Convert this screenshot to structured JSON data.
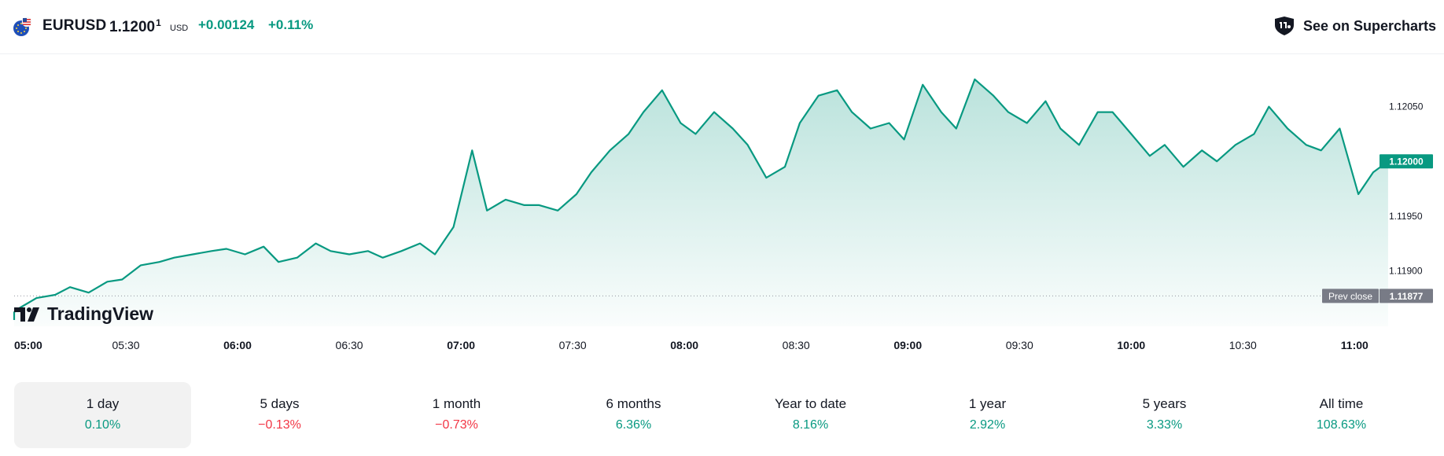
{
  "header": {
    "symbol": "EURUSD",
    "price_main": "1.1200",
    "price_super": "1",
    "currency": "USD",
    "change": "+0.00124",
    "change_pct": "+0.11%",
    "supercharts_label": "See on Supercharts",
    "flag_icon": "eu-us-flag-icon",
    "supercharts_icon": "supercharts-icon"
  },
  "logo_text": "TradingView",
  "colors": {
    "line": "#089981",
    "positive": "#089981",
    "negative": "#f23645",
    "prev_close_tag": "#787b86"
  },
  "chart_data": {
    "type": "area",
    "series": [
      {
        "x": [
          "04:52",
          "04:57",
          "05:01",
          "05:06",
          "05:11",
          "05:15",
          "05:20",
          "05:25",
          "05:29",
          "05:34",
          "05:39",
          "05:43",
          "05:48",
          "05:53",
          "05:57",
          "06:02",
          "06:07",
          "06:11",
          "06:16",
          "06:21",
          "06:25",
          "06:30",
          "06:35",
          "06:39",
          "06:44",
          "06:49",
          "06:53",
          "06:58",
          "07:03",
          "07:07",
          "07:12",
          "07:17",
          "07:21",
          "07:26",
          "07:31",
          "07:35",
          "07:40",
          "07:45",
          "07:49",
          "07:54",
          "07:59",
          "08:03",
          "08:08",
          "08:13",
          "08:17",
          "08:22",
          "08:27",
          "08:31",
          "08:36",
          "08:41",
          "08:45",
          "08:50",
          "08:55",
          "08:59",
          "09:04",
          "09:09",
          "09:13",
          "09:18",
          "09:23",
          "09:27",
          "09:32",
          "09:37",
          "09:41",
          "09:46",
          "09:51",
          "09:55",
          "10:00",
          "10:05",
          "10:09",
          "10:14",
          "10:19",
          "10:23",
          "10:28",
          "10:33",
          "10:37",
          "10:42",
          "10:47",
          "10:51",
          "10:56",
          "11:01",
          "11:05",
          "11:09"
        ],
        "values": [
          1.11855,
          1.11862,
          1.11865,
          1.11875,
          1.11878,
          1.11885,
          1.1188,
          1.1189,
          1.11892,
          1.11905,
          1.11908,
          1.11912,
          1.11915,
          1.11918,
          1.1192,
          1.11915,
          1.11922,
          1.11908,
          1.11912,
          1.11925,
          1.11918,
          1.11915,
          1.11918,
          1.11912,
          1.11918,
          1.11925,
          1.11915,
          1.1194,
          1.1201,
          1.11955,
          1.11965,
          1.1196,
          1.1196,
          1.11955,
          1.1197,
          1.1199,
          1.1201,
          1.12025,
          1.12045,
          1.12065,
          1.12035,
          1.12025,
          1.12045,
          1.1203,
          1.12015,
          1.11985,
          1.11995,
          1.12035,
          1.1206,
          1.12065,
          1.12045,
          1.1203,
          1.12035,
          1.1202,
          1.1207,
          1.12045,
          1.1203,
          1.12075,
          1.1206,
          1.12045,
          1.12035,
          1.12055,
          1.1203,
          1.12015,
          1.12045,
          1.12045,
          1.12025,
          1.12005,
          1.12015,
          1.11995,
          1.1201,
          1.12,
          1.12015,
          1.12025,
          1.1205,
          1.1203,
          1.12015,
          1.1201,
          1.1203,
          1.1197,
          1.1199,
          1.12
        ]
      }
    ],
    "ylim": [
      1.1186,
      1.1209
    ],
    "y_ticks": [
      "1.12050",
      "1.11950",
      "1.11900"
    ],
    "x_ticks": [
      {
        "label": "05:00",
        "bold": true
      },
      {
        "label": "05:30",
        "bold": false
      },
      {
        "label": "06:00",
        "bold": true
      },
      {
        "label": "06:30",
        "bold": false
      },
      {
        "label": "07:00",
        "bold": true
      },
      {
        "label": "07:30",
        "bold": false
      },
      {
        "label": "08:00",
        "bold": true
      },
      {
        "label": "08:30",
        "bold": false
      },
      {
        "label": "09:00",
        "bold": true
      },
      {
        "label": "09:30",
        "bold": false
      },
      {
        "label": "10:00",
        "bold": true
      },
      {
        "label": "10:30",
        "bold": false
      },
      {
        "label": "11:00",
        "bold": true
      }
    ],
    "last_price_label": "1.12000",
    "prev_close": {
      "label": "Prev close",
      "value": 1.11877,
      "value_label": "1.11877"
    },
    "grid": false,
    "legend": "none"
  },
  "periods": [
    {
      "label": "1 day",
      "value": "0.10%",
      "positive": true,
      "active": true
    },
    {
      "label": "5 days",
      "value": "−0.13%",
      "positive": false,
      "active": false
    },
    {
      "label": "1 month",
      "value": "−0.73%",
      "positive": false,
      "active": false
    },
    {
      "label": "6 months",
      "value": "6.36%",
      "positive": true,
      "active": false
    },
    {
      "label": "Year to date",
      "value": "8.16%",
      "positive": true,
      "active": false
    },
    {
      "label": "1 year",
      "value": "2.92%",
      "positive": true,
      "active": false
    },
    {
      "label": "5 years",
      "value": "3.33%",
      "positive": true,
      "active": false
    },
    {
      "label": "All time",
      "value": "108.63%",
      "positive": true,
      "active": false
    }
  ]
}
